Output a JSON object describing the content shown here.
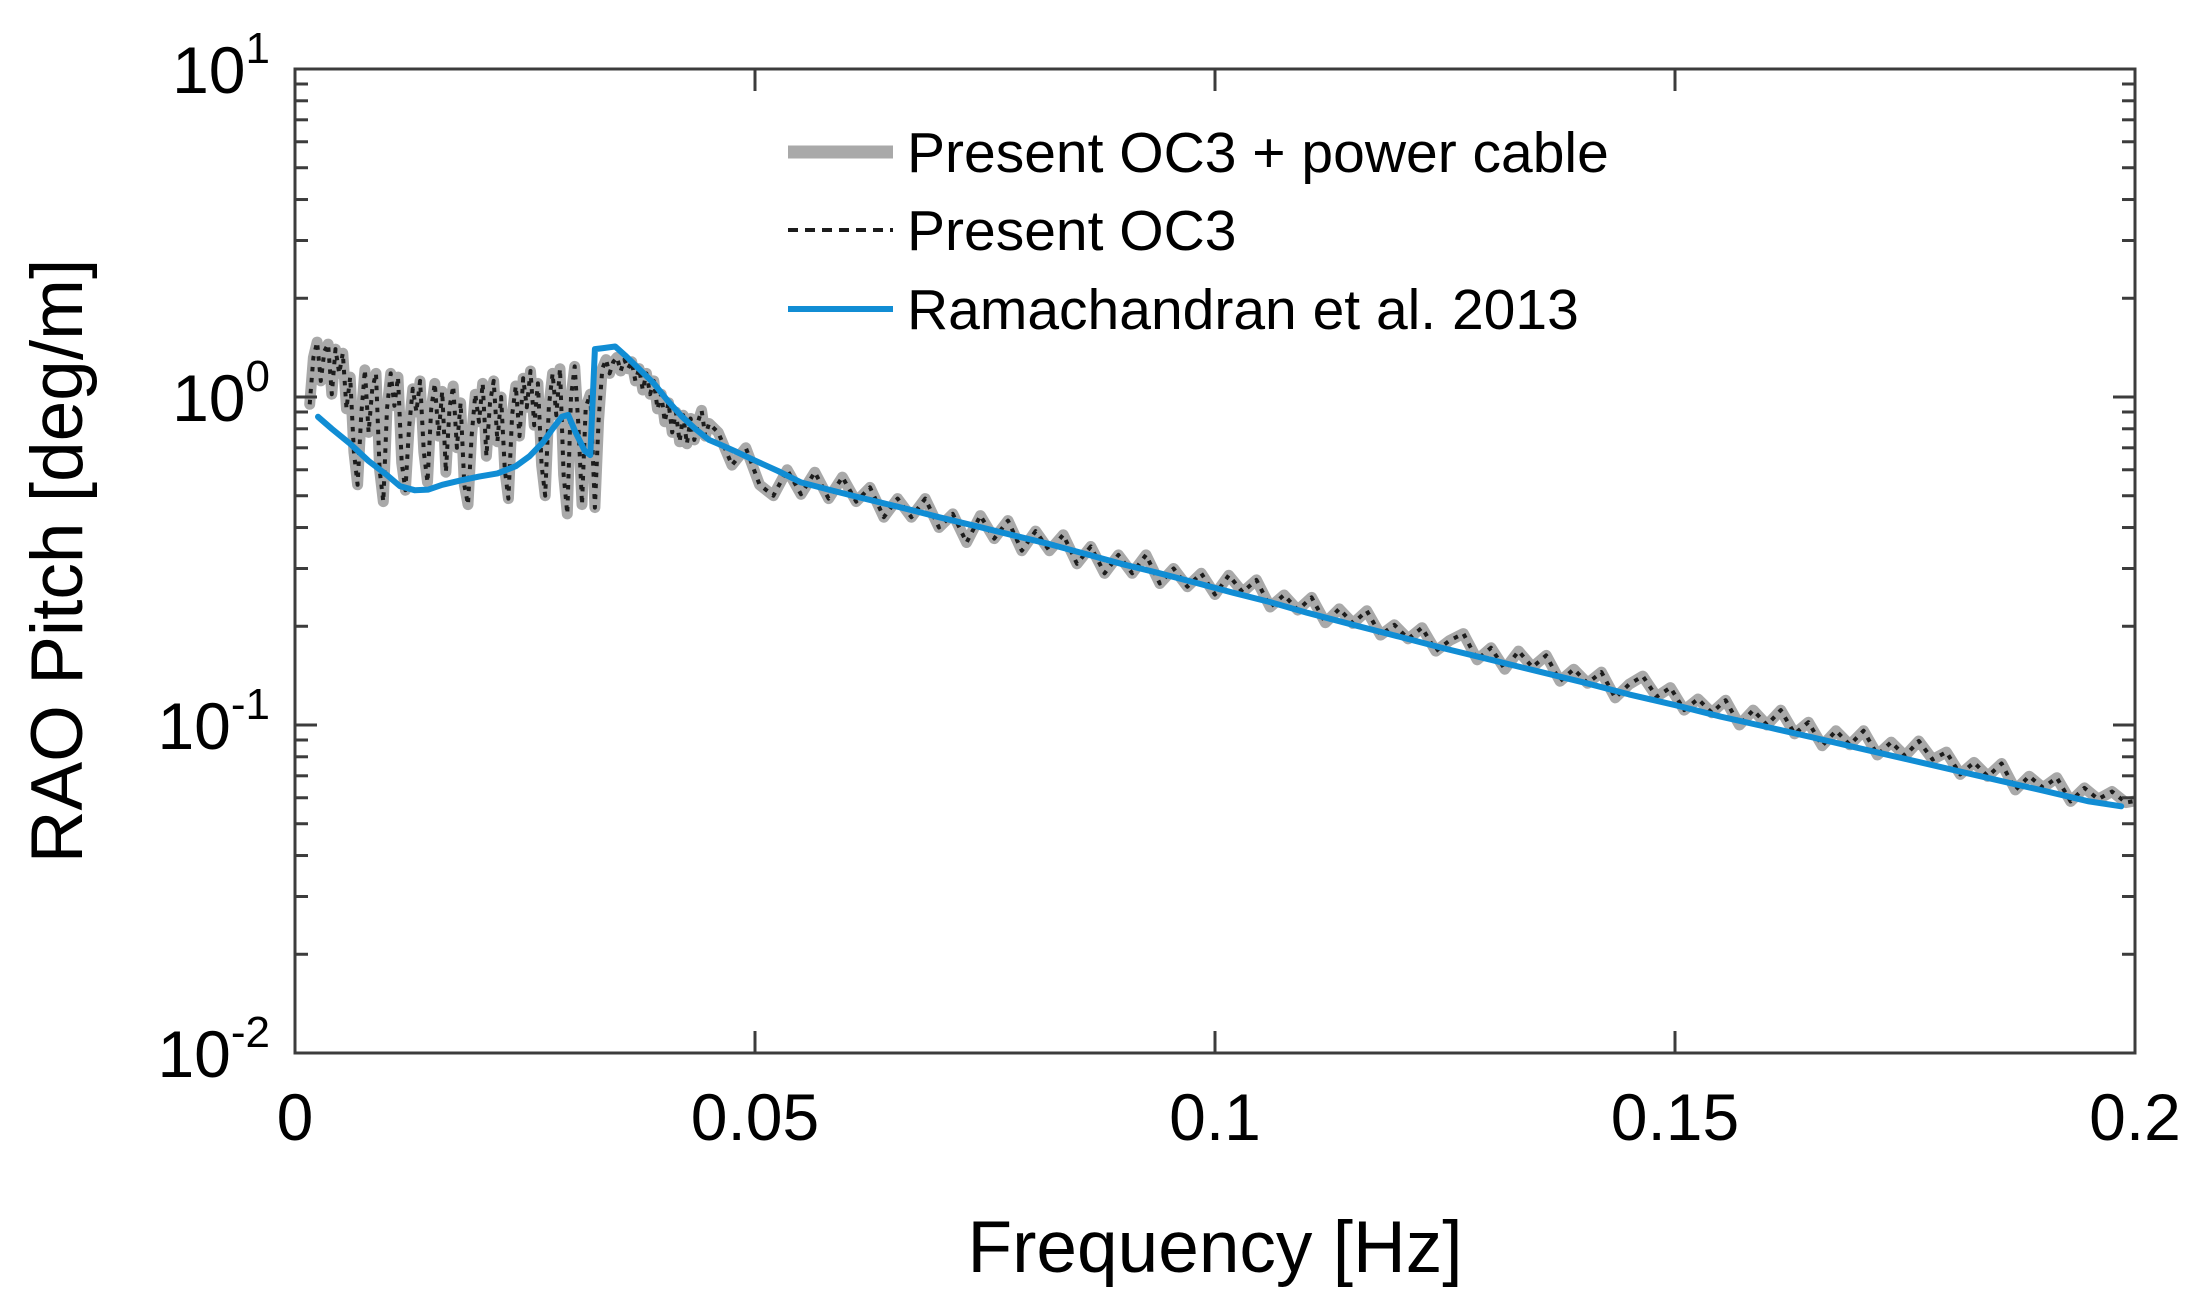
{
  "chart_data": {
    "type": "line",
    "title": "",
    "xlabel": "Frequency [Hz]",
    "ylabel": "RAO Pitch [deg/m]",
    "x_axis": {
      "scale": "linear",
      "min": 0,
      "max": 0.2,
      "ticks": [
        0,
        0.05,
        0.1,
        0.15,
        0.2
      ],
      "tick_labels": [
        "0",
        "0.05",
        "0.1",
        "0.15",
        "0.2"
      ]
    },
    "y_axis": {
      "scale": "log",
      "min": 0.01,
      "max": 10,
      "tick_values": [
        0.01,
        0.1,
        1,
        10
      ],
      "tick_base": "10",
      "tick_exponents": [
        "-2",
        "-1",
        "0",
        "1"
      ],
      "minor_tick_multiples": [
        2,
        3,
        4,
        5,
        6,
        7,
        8,
        9
      ]
    },
    "grid": false,
    "legend": {
      "location": "upper-center-right",
      "box": false
    },
    "series": [
      {
        "name": "Present OC3 + power cable",
        "color": "#a9a9a9",
        "line_style": "solid",
        "line_width": 11,
        "points": [
          [
            0.0016,
            0.95
          ],
          [
            0.002,
            1.32
          ],
          [
            0.0024,
            1.47
          ],
          [
            0.0028,
            1.12
          ],
          [
            0.0032,
            1.38
          ],
          [
            0.0036,
            1.45
          ],
          [
            0.004,
            1.02
          ],
          [
            0.0044,
            1.4
          ],
          [
            0.0048,
            1.18
          ],
          [
            0.0052,
            1.36
          ],
          [
            0.0056,
            0.92
          ],
          [
            0.006,
            1.15
          ],
          [
            0.0064,
            0.68
          ],
          [
            0.0068,
            0.54
          ],
          [
            0.0072,
            0.88
          ],
          [
            0.0076,
            1.21
          ],
          [
            0.008,
            0.78
          ],
          [
            0.0084,
            1.06
          ],
          [
            0.0088,
            1.18
          ],
          [
            0.0092,
            0.6
          ],
          [
            0.0096,
            0.48
          ],
          [
            0.01,
            0.92
          ],
          [
            0.0104,
            1.18
          ],
          [
            0.0108,
            0.94
          ],
          [
            0.0112,
            1.15
          ],
          [
            0.0116,
            0.63
          ],
          [
            0.012,
            0.52
          ],
          [
            0.0124,
            0.81
          ],
          [
            0.0128,
            1.06
          ],
          [
            0.0132,
            0.9
          ],
          [
            0.0136,
            1.12
          ],
          [
            0.014,
            0.68
          ],
          [
            0.0144,
            0.55
          ],
          [
            0.0148,
            0.92
          ],
          [
            0.0152,
            1.1
          ],
          [
            0.0156,
            0.76
          ],
          [
            0.016,
            1.04
          ],
          [
            0.0164,
            0.59
          ],
          [
            0.0168,
            0.93
          ],
          [
            0.0172,
            1.08
          ],
          [
            0.0176,
            0.7
          ],
          [
            0.018,
            0.96
          ],
          [
            0.0184,
            0.54
          ],
          [
            0.0188,
            0.47
          ],
          [
            0.0192,
            0.76
          ],
          [
            0.0196,
            1.02
          ],
          [
            0.02,
            0.84
          ],
          [
            0.0204,
            1.1
          ],
          [
            0.0208,
            0.66
          ],
          [
            0.0212,
            0.96
          ],
          [
            0.0216,
            1.12
          ],
          [
            0.022,
            0.73
          ],
          [
            0.0224,
            1.0
          ],
          [
            0.0228,
            0.6
          ],
          [
            0.0232,
            0.49
          ],
          [
            0.0236,
            0.88
          ],
          [
            0.024,
            1.08
          ],
          [
            0.0244,
            0.76
          ],
          [
            0.0248,
            1.14
          ],
          [
            0.0252,
            0.93
          ],
          [
            0.0256,
            1.2
          ],
          [
            0.026,
            0.82
          ],
          [
            0.0264,
            1.1
          ],
          [
            0.0268,
            0.62
          ],
          [
            0.0272,
            0.5
          ],
          [
            0.0276,
            0.94
          ],
          [
            0.028,
            1.18
          ],
          [
            0.0284,
            0.88
          ],
          [
            0.0288,
            1.22
          ],
          [
            0.0292,
            0.58
          ],
          [
            0.0296,
            0.44
          ],
          [
            0.03,
            1.0
          ],
          [
            0.0304,
            1.24
          ],
          [
            0.0308,
            0.82
          ],
          [
            0.0312,
            0.47
          ],
          [
            0.0316,
            0.93
          ],
          [
            0.0321,
            1.02
          ],
          [
            0.0326,
            0.46
          ],
          [
            0.033,
            0.85
          ],
          [
            0.0334,
            1.22
          ],
          [
            0.0338,
            1.3
          ],
          [
            0.0342,
            1.18
          ],
          [
            0.0346,
            1.28
          ],
          [
            0.035,
            1.32
          ],
          [
            0.0354,
            1.2
          ],
          [
            0.0358,
            1.3
          ],
          [
            0.0362,
            1.22
          ],
          [
            0.0366,
            1.28
          ],
          [
            0.037,
            1.12
          ],
          [
            0.0374,
            1.22
          ],
          [
            0.0378,
            1.05
          ],
          [
            0.0382,
            1.18
          ],
          [
            0.0386,
            1.02
          ],
          [
            0.039,
            1.12
          ],
          [
            0.0394,
            0.92
          ],
          [
            0.0398,
            1.02
          ],
          [
            0.0402,
            0.84
          ],
          [
            0.0406,
            0.96
          ],
          [
            0.041,
            0.78
          ],
          [
            0.0414,
            0.9
          ],
          [
            0.0418,
            0.73
          ],
          [
            0.0422,
            0.88
          ],
          [
            0.0426,
            0.72
          ],
          [
            0.043,
            0.86
          ],
          [
            0.0434,
            0.74
          ],
          [
            0.0438,
            0.84
          ],
          [
            0.0442,
            0.91
          ],
          [
            0.0446,
            0.76
          ],
          [
            0.045,
            0.83
          ],
          [
            0.046,
            0.78
          ],
          [
            0.0475,
            0.62
          ],
          [
            0.049,
            0.7
          ],
          [
            0.0505,
            0.54
          ],
          [
            0.052,
            0.5
          ],
          [
            0.0535,
            0.6
          ],
          [
            0.055,
            0.505
          ],
          [
            0.0565,
            0.59
          ],
          [
            0.058,
            0.49
          ],
          [
            0.0595,
            0.57
          ],
          [
            0.061,
            0.48
          ],
          [
            0.0625,
            0.53
          ],
          [
            0.064,
            0.43
          ],
          [
            0.0655,
            0.49
          ],
          [
            0.067,
            0.43
          ],
          [
            0.0685,
            0.49
          ],
          [
            0.07,
            0.4
          ],
          [
            0.0715,
            0.44
          ],
          [
            0.073,
            0.36
          ],
          [
            0.0745,
            0.435
          ],
          [
            0.076,
            0.37
          ],
          [
            0.0775,
            0.42
          ],
          [
            0.079,
            0.34
          ],
          [
            0.0805,
            0.39
          ],
          [
            0.082,
            0.34
          ],
          [
            0.0835,
            0.38
          ],
          [
            0.085,
            0.31
          ],
          [
            0.0865,
            0.35
          ],
          [
            0.088,
            0.29
          ],
          [
            0.0895,
            0.33
          ],
          [
            0.091,
            0.29
          ],
          [
            0.0925,
            0.33
          ],
          [
            0.094,
            0.27
          ],
          [
            0.0955,
            0.3
          ],
          [
            0.097,
            0.264
          ],
          [
            0.0985,
            0.29
          ],
          [
            0.1,
            0.25
          ],
          [
            0.1015,
            0.286
          ],
          [
            0.103,
            0.254
          ],
          [
            0.1045,
            0.277
          ],
          [
            0.106,
            0.229
          ],
          [
            0.1075,
            0.249
          ],
          [
            0.109,
            0.224
          ],
          [
            0.1105,
            0.245
          ],
          [
            0.112,
            0.205
          ],
          [
            0.1135,
            0.226
          ],
          [
            0.115,
            0.204
          ],
          [
            0.1165,
            0.223
          ],
          [
            0.118,
            0.188
          ],
          [
            0.1195,
            0.202
          ],
          [
            0.121,
            0.183
          ],
          [
            0.1225,
            0.198
          ],
          [
            0.124,
            0.168
          ],
          [
            0.1255,
            0.181
          ],
          [
            0.127,
            0.19
          ],
          [
            0.1285,
            0.158
          ],
          [
            0.13,
            0.172
          ],
          [
            0.1315,
            0.148
          ],
          [
            0.133,
            0.168
          ],
          [
            0.1345,
            0.15
          ],
          [
            0.136,
            0.163
          ],
          [
            0.1375,
            0.136
          ],
          [
            0.139,
            0.148
          ],
          [
            0.1405,
            0.134
          ],
          [
            0.142,
            0.145
          ],
          [
            0.1435,
            0.121
          ],
          [
            0.145,
            0.133
          ],
          [
            0.1465,
            0.141
          ],
          [
            0.148,
            0.122
          ],
          [
            0.1495,
            0.13
          ],
          [
            0.151,
            0.111
          ],
          [
            0.1525,
            0.12
          ],
          [
            0.154,
            0.109
          ],
          [
            0.1555,
            0.119
          ],
          [
            0.157,
            0.1
          ],
          [
            0.1585,
            0.111
          ],
          [
            0.16,
            0.1
          ],
          [
            0.1615,
            0.111
          ],
          [
            0.163,
            0.094
          ],
          [
            0.1645,
            0.102
          ],
          [
            0.166,
            0.0865
          ],
          [
            0.1675,
            0.096
          ],
          [
            0.169,
            0.087
          ],
          [
            0.1705,
            0.096
          ],
          [
            0.172,
            0.081
          ],
          [
            0.1735,
            0.0887
          ],
          [
            0.175,
            0.0805
          ],
          [
            0.1765,
            0.0894
          ],
          [
            0.178,
            0.0785
          ],
          [
            0.1795,
            0.0827
          ],
          [
            0.181,
            0.0707
          ],
          [
            0.1825,
            0.0769
          ],
          [
            0.184,
            0.0697
          ],
          [
            0.1855,
            0.0763
          ],
          [
            0.187,
            0.0634
          ],
          [
            0.1885,
            0.0698
          ],
          [
            0.19,
            0.0644
          ],
          [
            0.1915,
            0.0691
          ],
          [
            0.193,
            0.0585
          ],
          [
            0.1945,
            0.0643
          ],
          [
            0.196,
            0.0594
          ],
          [
            0.1975,
            0.0627
          ],
          [
            0.199,
            0.058
          ],
          [
            0.2,
            0.0587
          ]
        ]
      },
      {
        "name": "Present OC3",
        "color": "#1c1c1c",
        "line_style": "dotted",
        "line_width": 4,
        "points_same_as_series": 0
      },
      {
        "name": "Ramachandran et al. 2013",
        "color": "#118dd4",
        "line_style": "solid",
        "line_width": 6,
        "points": [
          [
            0.0025,
            0.87
          ],
          [
            0.004,
            0.8
          ],
          [
            0.006,
            0.72
          ],
          [
            0.008,
            0.638
          ],
          [
            0.01,
            0.578
          ],
          [
            0.0114,
            0.535
          ],
          [
            0.013,
            0.52
          ],
          [
            0.0145,
            0.522
          ],
          [
            0.016,
            0.54
          ],
          [
            0.018,
            0.557
          ],
          [
            0.02,
            0.572
          ],
          [
            0.022,
            0.585
          ],
          [
            0.024,
            0.615
          ],
          [
            0.0255,
            0.66
          ],
          [
            0.027,
            0.73
          ],
          [
            0.028,
            0.8
          ],
          [
            0.029,
            0.87
          ],
          [
            0.0297,
            0.882
          ],
          [
            0.0305,
            0.78
          ],
          [
            0.0315,
            0.685
          ],
          [
            0.0321,
            0.665
          ],
          [
            0.0326,
            1.4
          ],
          [
            0.0335,
            1.41
          ],
          [
            0.0348,
            1.425
          ],
          [
            0.036,
            1.33
          ],
          [
            0.0375,
            1.21
          ],
          [
            0.039,
            1.1
          ],
          [
            0.0405,
            0.975
          ],
          [
            0.042,
            0.875
          ],
          [
            0.0435,
            0.8
          ],
          [
            0.045,
            0.74
          ],
          [
            0.0465,
            0.71
          ],
          [
            0.048,
            0.68
          ],
          [
            0.05,
            0.64
          ],
          [
            0.0525,
            0.595
          ],
          [
            0.055,
            0.549
          ],
          [
            0.058,
            0.522
          ],
          [
            0.061,
            0.497
          ],
          [
            0.064,
            0.474
          ],
          [
            0.067,
            0.452
          ],
          [
            0.07,
            0.43
          ],
          [
            0.074,
            0.404
          ],
          [
            0.078,
            0.379
          ],
          [
            0.082,
            0.356
          ],
          [
            0.086,
            0.332
          ],
          [
            0.09,
            0.309
          ],
          [
            0.094,
            0.29
          ],
          [
            0.098,
            0.271
          ],
          [
            0.102,
            0.253
          ],
          [
            0.106,
            0.237
          ],
          [
            0.11,
            0.22
          ],
          [
            0.115,
            0.202
          ],
          [
            0.12,
            0.186
          ],
          [
            0.125,
            0.171
          ],
          [
            0.13,
            0.158
          ],
          [
            0.135,
            0.146
          ],
          [
            0.14,
            0.135
          ],
          [
            0.145,
            0.124
          ],
          [
            0.15,
            0.115
          ],
          [
            0.155,
            0.106
          ],
          [
            0.16,
            0.0986
          ],
          [
            0.165,
            0.0916
          ],
          [
            0.17,
            0.085
          ],
          [
            0.175,
            0.0789
          ],
          [
            0.18,
            0.0732
          ],
          [
            0.185,
            0.0679
          ],
          [
            0.19,
            0.0631
          ],
          [
            0.195,
            0.0585
          ],
          [
            0.1985,
            0.0565
          ]
        ]
      }
    ]
  }
}
